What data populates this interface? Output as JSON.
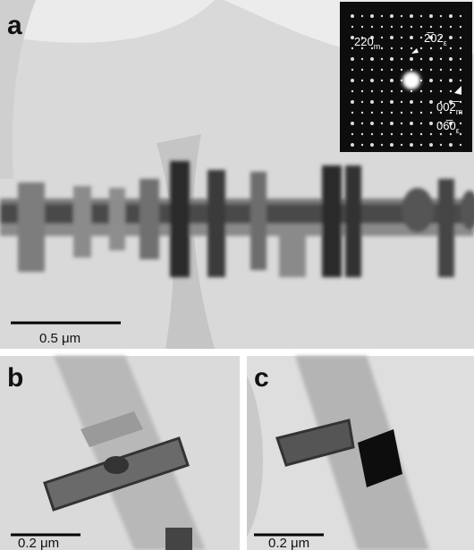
{
  "panels": [
    {
      "label": "a",
      "scale_bar": "0.5 μm"
    },
    {
      "label": "b",
      "scale_bar": "0.2 μm"
    },
    {
      "label": "c",
      "scale_bar": "0.2 μm"
    }
  ],
  "inset": {
    "spots": [
      {
        "index": "220",
        "sub": "m"
      },
      {
        "index": "2̅02",
        "sub": "ε"
      },
      {
        "index": "002̅",
        "sub": "m"
      },
      {
        "index": "06̅0",
        "sub": "ε"
      }
    ]
  }
}
